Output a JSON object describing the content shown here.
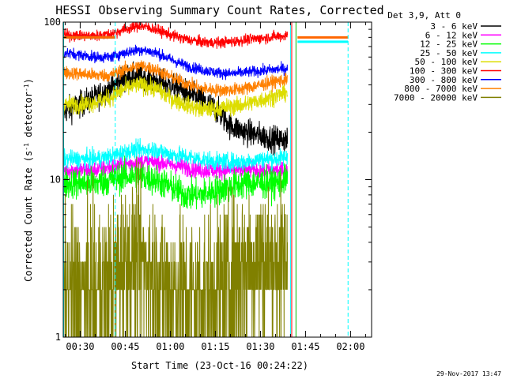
{
  "chart_data": {
    "type": "line",
    "title": "HESSI Observing Summary Count Rates, Corrected",
    "xlabel": "Start Time (23-Oct-16 00:24:22)",
    "ylabel_main": "Corrected Count Rate (s",
    "ylabel_sup": "-1",
    "ylabel_mid": " detector",
    "ylabel_sup2": "-1",
    "ylabel_end": ")",
    "yscale": "log",
    "ylim": [
      1,
      100
    ],
    "xlim": [
      "00:24:22",
      "02:07:00"
    ],
    "x_ticks": [
      "00:30",
      "00:45",
      "01:00",
      "01:15",
      "01:30",
      "01:45",
      "02:00"
    ],
    "y_ticks": [
      "1",
      "10",
      "100"
    ],
    "grid": false,
    "legend_title": "Det 3,9, Att 0",
    "legend_position": "top-right",
    "vertical_markers": [
      {
        "time": "00:24:30",
        "color": "#00ffff",
        "style": "solid"
      },
      {
        "time": "00:41:40",
        "color": "#00ffff",
        "style": "dashed"
      },
      {
        "time": "01:40:00",
        "color": "#00ffff",
        "style": "solid"
      },
      {
        "time": "01:40:25",
        "color": "#ff0000",
        "style": "solid"
      },
      {
        "time": "01:41:50",
        "color": "#00c000",
        "style": "solid"
      },
      {
        "time": "01:59:10",
        "color": "#00ffff",
        "style": "dashed"
      }
    ],
    "horizontal_bars": [
      {
        "start": "00:24:22",
        "end": "00:41:40",
        "value": 80,
        "color": "#00ffff"
      },
      {
        "start": "00:24:22",
        "end": "00:41:40",
        "value": 80,
        "color": "#ff6600"
      },
      {
        "start": "01:42:20",
        "end": "01:59:10",
        "value": 80,
        "color": "#ff6600"
      },
      {
        "start": "01:42:20",
        "end": "01:59:10",
        "value": 75,
        "color": "#00ffff"
      }
    ],
    "series": [
      {
        "name": "3 - 6 keV",
        "color": "#000000",
        "x": [
          "00:24:22",
          "00:30",
          "00:35",
          "00:40",
          "00:45",
          "00:50",
          "00:55",
          "01:00",
          "01:05",
          "01:10",
          "01:15",
          "01:20",
          "01:25",
          "01:30",
          "01:35",
          "01:39"
        ],
        "values": [
          27,
          30,
          33,
          38,
          44,
          45,
          42,
          40,
          36,
          32,
          28,
          22,
          20,
          19,
          18,
          18
        ],
        "noise": 0.06
      },
      {
        "name": "6 - 12 keV",
        "color": "#ff00ff",
        "x": [
          "00:24:22",
          "00:30",
          "00:35",
          "00:40",
          "00:45",
          "00:50",
          "00:55",
          "01:00",
          "01:05",
          "01:10",
          "01:15",
          "01:20",
          "01:25",
          "01:30",
          "01:35",
          "01:39"
        ],
        "values": [
          11.5,
          11.5,
          11.5,
          12,
          12.5,
          13,
          13,
          12.5,
          12,
          11.5,
          11.5,
          11.5,
          11.5,
          11.5,
          11.5,
          11.5
        ],
        "noise": 0.04
      },
      {
        "name": "12 - 25 keV",
        "color": "#00ff00",
        "x": [
          "00:24:22",
          "00:30",
          "00:35",
          "00:40",
          "00:45",
          "00:50",
          "00:55",
          "01:00",
          "01:05",
          "01:10",
          "01:15",
          "01:20",
          "01:25",
          "01:30",
          "01:35",
          "01:39"
        ],
        "values": [
          9.5,
          9.5,
          9.5,
          10,
          10.5,
          10.5,
          10,
          9,
          8,
          8,
          8.5,
          9,
          9.5,
          9.5,
          9.5,
          10
        ],
        "noise": 0.07
      },
      {
        "name": "25 - 50 keV",
        "color": "#00ffff",
        "x": [
          "00:24:22",
          "00:30",
          "00:35",
          "00:40",
          "00:45",
          "00:50",
          "00:55",
          "01:00",
          "01:05",
          "01:10",
          "01:15",
          "01:20",
          "01:25",
          "01:30",
          "01:35",
          "01:39"
        ],
        "values": [
          13.5,
          13.5,
          13.5,
          14,
          15,
          15.5,
          15.5,
          14.5,
          14,
          13.5,
          13,
          13,
          13,
          13.5,
          13.5,
          14
        ],
        "noise": 0.04
      },
      {
        "name": "50 - 100 keV",
        "color": "#dddd00",
        "x": [
          "00:24:22",
          "00:30",
          "00:35",
          "00:40",
          "00:45",
          "00:50",
          "00:55",
          "01:00",
          "01:05",
          "01:10",
          "01:15",
          "01:20",
          "01:25",
          "01:30",
          "01:35",
          "01:39"
        ],
        "values": [
          30,
          30,
          31,
          33,
          38,
          40,
          38,
          33,
          30,
          28,
          28,
          29,
          30,
          32,
          34,
          36
        ],
        "noise": 0.04
      },
      {
        "name": "100 - 300 keV",
        "color": "#ff0000",
        "x": [
          "00:24:22",
          "00:30",
          "00:35",
          "00:40",
          "00:45",
          "00:50",
          "00:55",
          "01:00",
          "01:05",
          "01:10",
          "01:15",
          "01:20",
          "01:25",
          "01:30",
          "01:35",
          "01:39"
        ],
        "values": [
          83,
          82,
          82,
          84,
          90,
          95,
          90,
          83,
          78,
          75,
          74,
          75,
          77,
          79,
          81,
          82
        ],
        "noise": 0.025
      },
      {
        "name": "300 - 800 keV",
        "color": "#0000ff",
        "x": [
          "00:24:22",
          "00:30",
          "00:35",
          "00:40",
          "00:45",
          "00:50",
          "00:55",
          "01:00",
          "01:05",
          "01:10",
          "01:15",
          "01:20",
          "01:25",
          "01:30",
          "01:35",
          "01:39"
        ],
        "values": [
          64,
          62,
          60,
          60,
          64,
          67,
          64,
          58,
          53,
          50,
          48,
          47,
          48,
          49,
          50,
          51
        ],
        "noise": 0.025
      },
      {
        "name": "800 - 7000 keV",
        "color": "#ff8000",
        "x": [
          "00:24:22",
          "00:30",
          "00:35",
          "00:40",
          "00:45",
          "00:50",
          "00:55",
          "01:00",
          "01:05",
          "01:10",
          "01:15",
          "01:20",
          "01:25",
          "01:30",
          "01:35",
          "01:39"
        ],
        "values": [
          48,
          47,
          46,
          46,
          50,
          53,
          50,
          45,
          41,
          38,
          37,
          37,
          38,
          40,
          42,
          43
        ],
        "noise": 0.03
      },
      {
        "name": "7000 - 20000 keV",
        "color": "#808000",
        "x": [
          "00:24:22",
          "00:30",
          "00:35",
          "00:40",
          "00:45",
          "00:50",
          "00:55",
          "01:00",
          "01:05",
          "01:10",
          "01:15",
          "01:20",
          "01:25",
          "01:30",
          "01:35",
          "01:39"
        ],
        "values": [
          2,
          2,
          2,
          2.2,
          3,
          3,
          2.5,
          2,
          2,
          2,
          2,
          2.5,
          3,
          3,
          3,
          3
        ],
        "noise": 0.35,
        "quantized": true
      }
    ]
  },
  "timestamp": "29-Nov-2017 13:47"
}
